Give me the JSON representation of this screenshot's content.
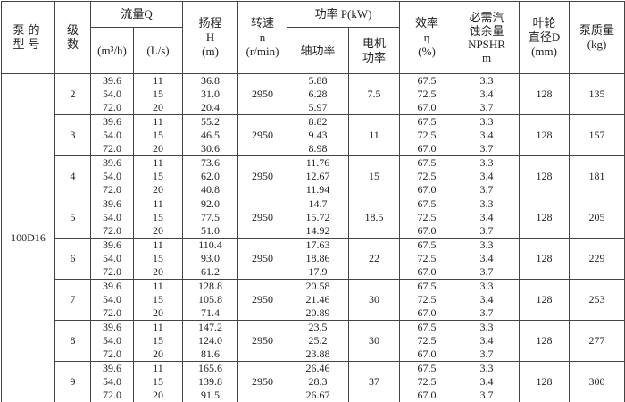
{
  "headers": {
    "model": "泵的\n型号",
    "stage": "级\n数",
    "flow": "流量Q",
    "flow_m3h": "(m³/h)",
    "flow_ls": "(L/s)",
    "head": "扬程\nH\n(m)",
    "speed": "转速\nn\n(r/min)",
    "power": "功率 P(kW)",
    "shaft_power": "轴功率",
    "motor_power": "电机\n功率",
    "efficiency": "效率\nη\n(%)",
    "npshr": "必需汽\n蚀余量\nNPSHR\nm",
    "impeller": "叶轮\n直径D\n(mm)",
    "mass": "泵质量\n(kg)"
  },
  "model": "100D16",
  "groups": [
    {
      "stage": "2",
      "q_m3h": [
        "39.6",
        "54.0",
        "72.0"
      ],
      "q_ls": [
        "11",
        "15",
        "20"
      ],
      "head": [
        "36.8",
        "31.0",
        "20.4"
      ],
      "speed": "2950",
      "shaft": [
        "5.88",
        "6.28",
        "5.97"
      ],
      "motor": "7.5",
      "eff": [
        "67.5",
        "72.5",
        "67.0"
      ],
      "npsh": [
        "3.3",
        "3.4",
        "3.7"
      ],
      "d": "128",
      "mass": "135"
    },
    {
      "stage": "3",
      "q_m3h": [
        "39.6",
        "54.0",
        "72.0"
      ],
      "q_ls": [
        "11",
        "15",
        "20"
      ],
      "head": [
        "55.2",
        "46.5",
        "30.6"
      ],
      "speed": "2950",
      "shaft": [
        "8.82",
        "9.43",
        "8.98"
      ],
      "motor": "11",
      "eff": [
        "67.5",
        "72.5",
        "67.0"
      ],
      "npsh": [
        "3.3",
        "3.4",
        "3.7"
      ],
      "d": "128",
      "mass": "157"
    },
    {
      "stage": "4",
      "q_m3h": [
        "39.6",
        "54.0",
        "72.0"
      ],
      "q_ls": [
        "11",
        "15",
        "20"
      ],
      "head": [
        "73.6",
        "62.0",
        "40.8"
      ],
      "speed": "2950",
      "shaft": [
        "11.76",
        "12.67",
        "11.94"
      ],
      "motor": "15",
      "eff": [
        "67.5",
        "72.5",
        "67.0"
      ],
      "npsh": [
        "3.3",
        "3.4",
        "3.7"
      ],
      "d": "128",
      "mass": "181"
    },
    {
      "stage": "5",
      "q_m3h": [
        "39.6",
        "54.0",
        "72.0"
      ],
      "q_ls": [
        "11",
        "15",
        "20"
      ],
      "head": [
        "92.0",
        "77.5",
        "51.0"
      ],
      "speed": "2950",
      "shaft": [
        "14.7",
        "15.72",
        "14.92"
      ],
      "motor": "18.5",
      "eff": [
        "67.5",
        "72.5",
        "67.0"
      ],
      "npsh": [
        "3.3",
        "3.4",
        "3.7"
      ],
      "d": "128",
      "mass": "205"
    },
    {
      "stage": "6",
      "q_m3h": [
        "39.6",
        "54.0",
        "72.0"
      ],
      "q_ls": [
        "11",
        "15",
        "20"
      ],
      "head": [
        "110.4",
        "93.0",
        "61.2"
      ],
      "speed": "2950",
      "shaft": [
        "17.63",
        "18.86",
        "17.9"
      ],
      "motor": "22",
      "eff": [
        "67.5",
        "72.5",
        "67.0"
      ],
      "npsh": [
        "3.3",
        "3.4",
        "3.7"
      ],
      "d": "128",
      "mass": "229"
    },
    {
      "stage": "7",
      "q_m3h": [
        "39.6",
        "54.0",
        "72.0"
      ],
      "q_ls": [
        "11",
        "15",
        "20"
      ],
      "head": [
        "128.8",
        "105.8",
        "71.4"
      ],
      "speed": "2950",
      "shaft": [
        "20.58",
        "21.46",
        "20.89"
      ],
      "motor": "30",
      "eff": [
        "67.5",
        "72.5",
        "67.0"
      ],
      "npsh": [
        "3.3",
        "3.4",
        "3.7"
      ],
      "d": "128",
      "mass": "253"
    },
    {
      "stage": "8",
      "q_m3h": [
        "39.6",
        "54.0",
        "72.0"
      ],
      "q_ls": [
        "11",
        "15",
        "20"
      ],
      "head": [
        "147.2",
        "124.0",
        "81.6"
      ],
      "speed": "2950",
      "shaft": [
        "23.5",
        "25.2",
        "23.88"
      ],
      "motor": "30",
      "eff": [
        "67.5",
        "72.5",
        "67.0"
      ],
      "npsh": [
        "3.3",
        "3.4",
        "3.7"
      ],
      "d": "128",
      "mass": "277"
    },
    {
      "stage": "9",
      "q_m3h": [
        "39.6",
        "54.0",
        "72.0"
      ],
      "q_ls": [
        "11",
        "15",
        "20"
      ],
      "head": [
        "165.6",
        "139.8",
        "91.5"
      ],
      "speed": "2950",
      "shaft": [
        "26.46",
        "28.3",
        "26.67"
      ],
      "motor": "37",
      "eff": [
        "67.5",
        "72.5",
        "67.0"
      ],
      "npsh": [
        "3.3",
        "3.4",
        "3.7"
      ],
      "d": "128",
      "mass": "300"
    }
  ]
}
